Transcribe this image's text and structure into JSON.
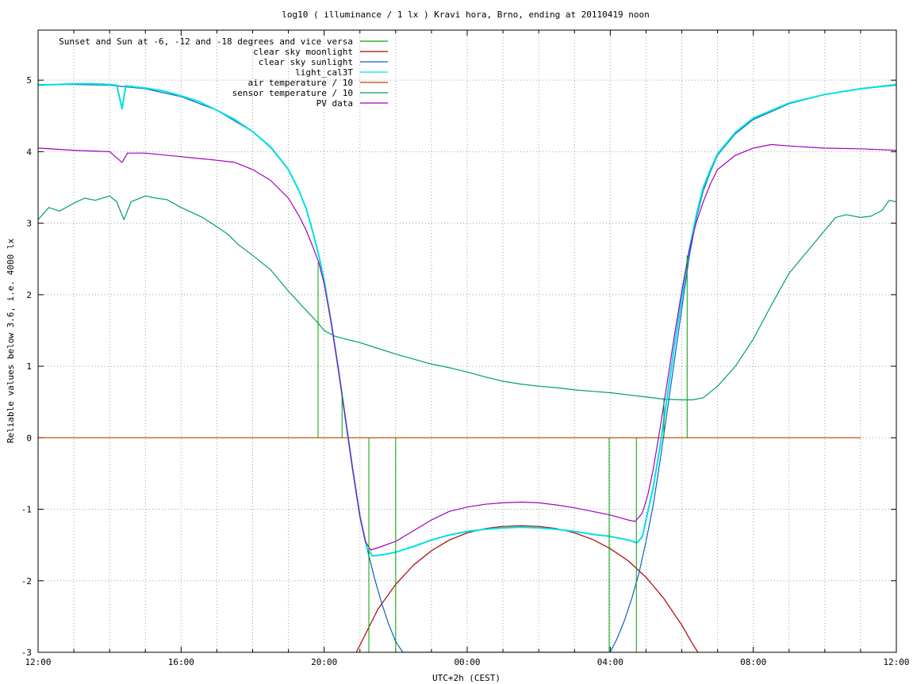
{
  "chart_data": {
    "type": "line",
    "title": "log10 ( illuminance / 1 lx ) Kravi hora, Brno, ending at 20110419 noon",
    "xlabel": "UTC+2h (CEST)",
    "ylabel": "Reliable values below 3.6, i.e. 4000 lx",
    "xlim": [
      12,
      36
    ],
    "ylim": [
      -3,
      5.7
    ],
    "x_ticks": [
      {
        "x": 12,
        "label": "12:00"
      },
      {
        "x": 16,
        "label": "16:00"
      },
      {
        "x": 20,
        "label": "20:00"
      },
      {
        "x": 24,
        "label": "00:00"
      },
      {
        "x": 28,
        "label": "04:00"
      },
      {
        "x": 32,
        "label": "08:00"
      },
      {
        "x": 36,
        "label": "12:00"
      }
    ],
    "y_ticks": [
      {
        "y": 5,
        "label": "5"
      },
      {
        "y": 4,
        "label": "4"
      },
      {
        "y": 3,
        "label": "3"
      },
      {
        "y": 2,
        "label": "2"
      },
      {
        "y": 1,
        "label": "1"
      },
      {
        "y": 0,
        "label": "0"
      },
      {
        "y": -1,
        "label": "-1"
      },
      {
        "y": -2,
        "label": "-2"
      },
      {
        "y": -3,
        "label": "-3"
      }
    ],
    "grid": true,
    "legend_position": "top-left",
    "series": [
      {
        "name": "Sunset and Sun at -6, -12 and -18 degrees and vice versa",
        "color": "#00a000",
        "style": "vertical-lines",
        "lines": [
          {
            "x": 19.83,
            "y0": 0,
            "y1": 2.45
          },
          {
            "x": 20.5,
            "y0": 0,
            "y1": 0.6
          },
          {
            "x": 21.25,
            "y0": 0,
            "y1": -3
          },
          {
            "x": 22.0,
            "y0": 0,
            "y1": -3
          },
          {
            "x": 27.97,
            "y0": 0,
            "y1": -3
          },
          {
            "x": 28.73,
            "y0": 0,
            "y1": -3
          },
          {
            "x": 29.5,
            "y0": 0,
            "y1": 0.55
          },
          {
            "x": 30.15,
            "y0": 0,
            "y1": 2.55
          }
        ]
      },
      {
        "name": "clear sky moonlight",
        "color": "#b00000",
        "points": [
          [
            20.9,
            -3
          ],
          [
            21.2,
            -2.7
          ],
          [
            21.5,
            -2.4
          ],
          [
            22.0,
            -2.05
          ],
          [
            22.5,
            -1.78
          ],
          [
            23.0,
            -1.58
          ],
          [
            23.5,
            -1.43
          ],
          [
            24.0,
            -1.33
          ],
          [
            24.5,
            -1.27
          ],
          [
            25.0,
            -1.24
          ],
          [
            25.5,
            -1.23
          ],
          [
            26.0,
            -1.24
          ],
          [
            26.5,
            -1.27
          ],
          [
            27.0,
            -1.33
          ],
          [
            27.5,
            -1.42
          ],
          [
            28.0,
            -1.55
          ],
          [
            28.5,
            -1.72
          ],
          [
            29.0,
            -1.95
          ],
          [
            29.5,
            -2.25
          ],
          [
            30.0,
            -2.62
          ],
          [
            30.3,
            -2.88
          ],
          [
            30.45,
            -3
          ]
        ]
      },
      {
        "name": "clear sky sunlight",
        "color": "#1060c0",
        "points": [
          [
            12.0,
            4.94
          ],
          [
            13.0,
            4.94
          ],
          [
            14.0,
            4.93
          ],
          [
            15.0,
            4.88
          ],
          [
            16.0,
            4.77
          ],
          [
            17.0,
            4.58
          ],
          [
            18.0,
            4.28
          ],
          [
            18.5,
            4.06
          ],
          [
            19.0,
            3.75
          ],
          [
            19.3,
            3.45
          ],
          [
            19.5,
            3.2
          ],
          [
            19.7,
            2.85
          ],
          [
            19.85,
            2.55
          ],
          [
            20.0,
            2.2
          ],
          [
            20.2,
            1.6
          ],
          [
            20.4,
            0.95
          ],
          [
            20.6,
            0.25
          ],
          [
            20.8,
            -0.45
          ],
          [
            21.0,
            -1.1
          ],
          [
            21.2,
            -1.55
          ],
          [
            21.4,
            -1.95
          ],
          [
            21.6,
            -2.3
          ],
          [
            21.8,
            -2.6
          ],
          [
            22.0,
            -2.85
          ],
          [
            22.2,
            -3.0
          ],
          [
            28.0,
            -3.0
          ],
          [
            28.2,
            -2.8
          ],
          [
            28.4,
            -2.55
          ],
          [
            28.6,
            -2.25
          ],
          [
            28.8,
            -1.9
          ],
          [
            29.0,
            -1.45
          ],
          [
            29.2,
            -0.95
          ],
          [
            29.4,
            -0.3
          ],
          [
            29.6,
            0.4
          ],
          [
            29.8,
            1.1
          ],
          [
            30.0,
            1.8
          ],
          [
            30.2,
            2.5
          ],
          [
            30.4,
            3.05
          ],
          [
            30.6,
            3.45
          ],
          [
            30.8,
            3.72
          ],
          [
            31.0,
            3.95
          ],
          [
            31.5,
            4.25
          ],
          [
            32.0,
            4.45
          ],
          [
            33.0,
            4.67
          ],
          [
            34.0,
            4.8
          ],
          [
            35.0,
            4.88
          ],
          [
            36.0,
            4.93
          ]
        ]
      },
      {
        "name": "light_cal3T",
        "color": "#00e0e0",
        "points": [
          [
            12.0,
            4.93
          ],
          [
            12.5,
            4.94
          ],
          [
            13.0,
            4.95
          ],
          [
            13.5,
            4.95
          ],
          [
            14.0,
            4.94
          ],
          [
            14.2,
            4.93
          ],
          [
            14.35,
            4.6
          ],
          [
            14.45,
            4.92
          ],
          [
            15.0,
            4.89
          ],
          [
            15.5,
            4.85
          ],
          [
            16.0,
            4.78
          ],
          [
            16.5,
            4.7
          ],
          [
            17.0,
            4.58
          ],
          [
            17.5,
            4.45
          ],
          [
            18.0,
            4.28
          ],
          [
            18.5,
            4.07
          ],
          [
            19.0,
            3.75
          ],
          [
            19.3,
            3.45
          ],
          [
            19.5,
            3.2
          ],
          [
            19.7,
            2.85
          ],
          [
            19.85,
            2.55
          ],
          [
            20.0,
            2.2
          ],
          [
            20.2,
            1.6
          ],
          [
            20.4,
            0.95
          ],
          [
            20.6,
            0.25
          ],
          [
            20.8,
            -0.45
          ],
          [
            21.0,
            -1.1
          ],
          [
            21.2,
            -1.55
          ],
          [
            21.35,
            -1.65
          ],
          [
            21.6,
            -1.64
          ],
          [
            22.0,
            -1.6
          ],
          [
            22.5,
            -1.52
          ],
          [
            23.0,
            -1.43
          ],
          [
            23.5,
            -1.36
          ],
          [
            24.0,
            -1.31
          ],
          [
            24.5,
            -1.28
          ],
          [
            25.0,
            -1.26
          ],
          [
            25.5,
            -1.25
          ],
          [
            26.0,
            -1.26
          ],
          [
            26.5,
            -1.28
          ],
          [
            27.0,
            -1.31
          ],
          [
            27.5,
            -1.35
          ],
          [
            28.0,
            -1.38
          ],
          [
            28.5,
            -1.43
          ],
          [
            28.75,
            -1.47
          ],
          [
            28.9,
            -1.38
          ],
          [
            29.0,
            -1.15
          ],
          [
            29.2,
            -0.7
          ],
          [
            29.4,
            -0.1
          ],
          [
            29.6,
            0.6
          ],
          [
            29.8,
            1.3
          ],
          [
            30.0,
            1.95
          ],
          [
            30.2,
            2.6
          ],
          [
            30.4,
            3.1
          ],
          [
            30.6,
            3.5
          ],
          [
            30.8,
            3.75
          ],
          [
            31.0,
            3.97
          ],
          [
            31.5,
            4.27
          ],
          [
            32.0,
            4.47
          ],
          [
            33.0,
            4.68
          ],
          [
            34.0,
            4.8
          ],
          [
            35.0,
            4.88
          ],
          [
            36.0,
            4.94
          ]
        ]
      },
      {
        "name": "air temperature / 10",
        "color": "#c04000",
        "points": [
          [
            12.0,
            0.0
          ],
          [
            35.0,
            0.0
          ]
        ]
      },
      {
        "name": "sensor temperature / 10",
        "color": "#00a060",
        "points": [
          [
            12.0,
            3.05
          ],
          [
            12.3,
            3.22
          ],
          [
            12.6,
            3.17
          ],
          [
            13.0,
            3.28
          ],
          [
            13.3,
            3.35
          ],
          [
            13.6,
            3.32
          ],
          [
            14.0,
            3.38
          ],
          [
            14.2,
            3.3
          ],
          [
            14.4,
            3.05
          ],
          [
            14.6,
            3.3
          ],
          [
            15.0,
            3.38
          ],
          [
            15.3,
            3.35
          ],
          [
            15.6,
            3.33
          ],
          [
            16.0,
            3.22
          ],
          [
            16.3,
            3.15
          ],
          [
            16.6,
            3.08
          ],
          [
            17.0,
            2.95
          ],
          [
            17.3,
            2.85
          ],
          [
            17.6,
            2.7
          ],
          [
            18.0,
            2.55
          ],
          [
            18.5,
            2.35
          ],
          [
            19.0,
            2.05
          ],
          [
            19.5,
            1.78
          ],
          [
            19.8,
            1.62
          ],
          [
            20.0,
            1.5
          ],
          [
            20.3,
            1.42
          ],
          [
            20.6,
            1.38
          ],
          [
            21.0,
            1.33
          ],
          [
            21.5,
            1.25
          ],
          [
            22.0,
            1.17
          ],
          [
            22.5,
            1.1
          ],
          [
            23.0,
            1.03
          ],
          [
            23.5,
            0.98
          ],
          [
            24.0,
            0.92
          ],
          [
            24.5,
            0.85
          ],
          [
            25.0,
            0.79
          ],
          [
            25.5,
            0.75
          ],
          [
            26.0,
            0.72
          ],
          [
            26.5,
            0.7
          ],
          [
            27.0,
            0.67
          ],
          [
            27.5,
            0.65
          ],
          [
            28.0,
            0.63
          ],
          [
            28.5,
            0.6
          ],
          [
            29.0,
            0.57
          ],
          [
            29.5,
            0.54
          ],
          [
            30.0,
            0.53
          ],
          [
            30.3,
            0.53
          ],
          [
            30.6,
            0.56
          ],
          [
            31.0,
            0.72
          ],
          [
            31.5,
            1.0
          ],
          [
            32.0,
            1.38
          ],
          [
            32.5,
            1.85
          ],
          [
            33.0,
            2.3
          ],
          [
            33.5,
            2.6
          ],
          [
            34.0,
            2.9
          ],
          [
            34.3,
            3.08
          ],
          [
            34.6,
            3.12
          ],
          [
            35.0,
            3.08
          ],
          [
            35.3,
            3.1
          ],
          [
            35.6,
            3.18
          ],
          [
            35.8,
            3.32
          ],
          [
            36.0,
            3.3
          ]
        ]
      },
      {
        "name": "PV data",
        "color": "#a000c0",
        "points": [
          [
            12.0,
            4.05
          ],
          [
            13.0,
            4.02
          ],
          [
            14.0,
            4.0
          ],
          [
            14.35,
            3.85
          ],
          [
            14.5,
            3.98
          ],
          [
            15.0,
            3.98
          ],
          [
            16.0,
            3.93
          ],
          [
            17.0,
            3.88
          ],
          [
            17.5,
            3.85
          ],
          [
            18.0,
            3.75
          ],
          [
            18.5,
            3.6
          ],
          [
            19.0,
            3.35
          ],
          [
            19.3,
            3.1
          ],
          [
            19.5,
            2.9
          ],
          [
            19.7,
            2.65
          ],
          [
            19.85,
            2.45
          ],
          [
            20.0,
            2.15
          ],
          [
            20.2,
            1.6
          ],
          [
            20.4,
            0.95
          ],
          [
            20.6,
            0.25
          ],
          [
            20.8,
            -0.45
          ],
          [
            21.0,
            -1.1
          ],
          [
            21.15,
            -1.45
          ],
          [
            21.3,
            -1.57
          ],
          [
            21.6,
            -1.52
          ],
          [
            22.0,
            -1.45
          ],
          [
            22.5,
            -1.3
          ],
          [
            23.0,
            -1.15
          ],
          [
            23.5,
            -1.03
          ],
          [
            24.0,
            -0.97
          ],
          [
            24.5,
            -0.93
          ],
          [
            25.0,
            -0.91
          ],
          [
            25.5,
            -0.9
          ],
          [
            26.0,
            -0.91
          ],
          [
            26.5,
            -0.94
          ],
          [
            27.0,
            -0.98
          ],
          [
            27.5,
            -1.03
          ],
          [
            28.0,
            -1.08
          ],
          [
            28.5,
            -1.15
          ],
          [
            28.7,
            -1.17
          ],
          [
            28.9,
            -1.05
          ],
          [
            29.05,
            -0.8
          ],
          [
            29.2,
            -0.45
          ],
          [
            29.4,
            0.15
          ],
          [
            29.6,
            0.8
          ],
          [
            29.8,
            1.45
          ],
          [
            30.0,
            2.05
          ],
          [
            30.2,
            2.6
          ],
          [
            30.4,
            3.0
          ],
          [
            30.6,
            3.3
          ],
          [
            30.8,
            3.55
          ],
          [
            31.0,
            3.75
          ],
          [
            31.5,
            3.95
          ],
          [
            32.0,
            4.05
          ],
          [
            32.5,
            4.1
          ],
          [
            33.0,
            4.08
          ],
          [
            34.0,
            4.05
          ],
          [
            35.0,
            4.04
          ],
          [
            36.0,
            4.02
          ]
        ]
      }
    ]
  }
}
